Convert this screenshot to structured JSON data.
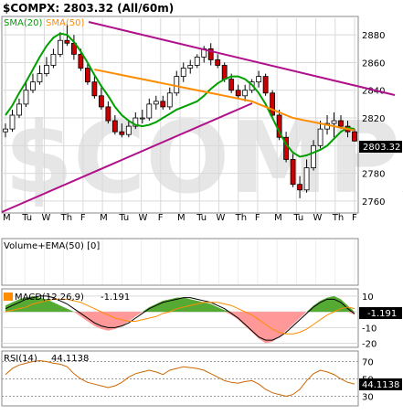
{
  "header": {
    "symbol_line": "$COMPX: 2803.32 (All/60m)",
    "sma20_label": "SMA(20)",
    "sma50_label": "SMA(50)",
    "watermark": "$COMPX"
  },
  "colors": {
    "background": "#ffffff",
    "grid": "#d9d9d9",
    "price_bar": "#000000",
    "up_candle": "#ffffff",
    "down_candle": "#cc0000",
    "sma20": "#00a000",
    "sma50": "#ff8c00",
    "trendline": "#b0108a",
    "macd_line": "#000000",
    "macd_signal": "#ff8c00",
    "macd_hist_pos": "#55aa33",
    "macd_hist_neg": "#ff9999",
    "rsi_line": "#cc6600",
    "last_value_box": "#000000",
    "last_value_text": "#ffffff"
  },
  "chart_data": [
    {
      "type": "candlestick",
      "title": "$COMPX: 2803.32 (All/60m)",
      "panel": "price",
      "ylim": [
        2752,
        2892
      ],
      "y_ticks": [
        2760,
        2780,
        2800,
        2820,
        2840,
        2860,
        2880
      ],
      "x_tick_labels": [
        "M",
        "Tu",
        "W",
        "Th",
        "F",
        "M",
        "Tu",
        "W",
        "F",
        "M",
        "Tu",
        "W",
        "Th",
        "F",
        "M",
        "Tu",
        "W",
        "Th",
        "F"
      ],
      "last_value": 2803.32,
      "last_value_label": "2803.32",
      "series": [
        {
          "name": "SMA(20)",
          "values": [
            2822,
            2829,
            2838,
            2846,
            2855,
            2864,
            2872,
            2878,
            2881,
            2880,
            2875,
            2868,
            2860,
            2851,
            2843,
            2836,
            2828,
            2822,
            2818,
            2815,
            2814,
            2815,
            2817,
            2820,
            2823,
            2826,
            2828,
            2830,
            2832,
            2836,
            2841,
            2845,
            2848,
            2850,
            2850,
            2848,
            2844,
            2838,
            2830,
            2820,
            2810,
            2801,
            2795,
            2792,
            2793,
            2795,
            2797,
            2800,
            2805,
            2810,
            2813,
            2812
          ]
        },
        {
          "name": "SMA(50)",
          "values": [
            null,
            null,
            null,
            null,
            null,
            null,
            null,
            null,
            null,
            null,
            null,
            null,
            null,
            2855,
            2854,
            2853,
            2852,
            2851,
            2850,
            2849,
            2848,
            2847,
            2846,
            2845,
            2844,
            2843,
            2842,
            2841,
            2840,
            2839,
            2838,
            2837,
            2836,
            2835,
            2834,
            2833,
            2832,
            2830,
            2828,
            2826,
            2824,
            2822,
            2820,
            2819,
            2818,
            2817,
            2816,
            2815,
            2814,
            2813,
            2812,
            2811
          ]
        }
      ],
      "candles": {
        "open": [
          2810,
          2812,
          2822,
          2830,
          2840,
          2846,
          2852,
          2858,
          2866,
          2876,
          2874,
          2866,
          2856,
          2846,
          2836,
          2828,
          2818,
          2810,
          2808,
          2814,
          2820,
          2820,
          2830,
          2832,
          2828,
          2838,
          2850,
          2856,
          2858,
          2864,
          2870,
          2862,
          2858,
          2848,
          2840,
          2836,
          2840,
          2846,
          2850,
          2838,
          2822,
          2806,
          2790,
          2772,
          2768,
          2784,
          2800,
          2812,
          2816,
          2818,
          2814,
          2810
        ],
        "high": [
          2816,
          2826,
          2834,
          2846,
          2852,
          2858,
          2864,
          2870,
          2882,
          2888,
          2880,
          2870,
          2860,
          2850,
          2842,
          2832,
          2822,
          2816,
          2818,
          2824,
          2826,
          2834,
          2836,
          2836,
          2842,
          2854,
          2860,
          2862,
          2866,
          2872,
          2874,
          2866,
          2860,
          2852,
          2844,
          2844,
          2848,
          2854,
          2852,
          2840,
          2826,
          2810,
          2794,
          2778,
          2790,
          2804,
          2818,
          2822,
          2824,
          2822,
          2818,
          2812
        ],
        "low": [
          2806,
          2810,
          2820,
          2828,
          2838,
          2844,
          2850,
          2856,
          2864,
          2872,
          2862,
          2854,
          2844,
          2834,
          2826,
          2816,
          2808,
          2806,
          2806,
          2812,
          2816,
          2818,
          2826,
          2826,
          2826,
          2836,
          2846,
          2852,
          2856,
          2860,
          2858,
          2856,
          2846,
          2838,
          2834,
          2832,
          2838,
          2842,
          2836,
          2820,
          2804,
          2788,
          2770,
          2762,
          2766,
          2782,
          2798,
          2808,
          2806,
          2812,
          2806,
          2803
        ],
        "close": [
          2812,
          2822,
          2830,
          2840,
          2846,
          2852,
          2858,
          2866,
          2876,
          2874,
          2866,
          2856,
          2846,
          2836,
          2828,
          2818,
          2810,
          2808,
          2814,
          2820,
          2820,
          2830,
          2832,
          2828,
          2838,
          2850,
          2856,
          2858,
          2864,
          2870,
          2862,
          2858,
          2848,
          2840,
          2836,
          2840,
          2846,
          2850,
          2838,
          2822,
          2806,
          2790,
          2772,
          2768,
          2784,
          2800,
          2812,
          2816,
          2818,
          2814,
          2810,
          2803.32
        ]
      }
    },
    {
      "type": "bar",
      "panel": "volume",
      "title": "Volume+EMA(50) [0]",
      "values": []
    },
    {
      "type": "area",
      "panel": "macd",
      "title": "MACD(12,26,9)",
      "last_value": -1.191,
      "last_value_label": "-1.191",
      "header_value": "-1.191",
      "ylim": [
        -22,
        14
      ],
      "y_ticks": [
        10,
        0,
        -10,
        -20
      ],
      "histogram": [
        4,
        6,
        8,
        9,
        10,
        9,
        8,
        6,
        4,
        2,
        0,
        -3,
        -6,
        -9,
        -11,
        -12,
        -11,
        -9,
        -6,
        -3,
        0,
        3,
        5,
        7,
        8,
        9,
        9,
        8,
        7,
        6,
        5,
        3,
        1,
        -2,
        -5,
        -9,
        -13,
        -17,
        -20,
        -19,
        -16,
        -12,
        -8,
        -4,
        0,
        4,
        7,
        9,
        10,
        8,
        4,
        -2
      ],
      "macd": [
        2,
        4,
        6,
        8,
        9,
        10,
        10,
        9,
        7,
        5,
        2,
        -1,
        -4,
        -7,
        -9,
        -10,
        -10,
        -9,
        -7,
        -4,
        -1,
        2,
        4,
        6,
        7,
        8,
        9,
        9,
        8,
        7,
        6,
        4,
        2,
        -1,
        -4,
        -8,
        -12,
        -16,
        -18,
        -18,
        -16,
        -13,
        -9,
        -5,
        -1,
        3,
        6,
        8,
        8,
        6,
        2,
        -1.191
      ],
      "signal": [
        0,
        1,
        2,
        3,
        5,
        6,
        7,
        8,
        8,
        8,
        7,
        6,
        4,
        2,
        0,
        -2,
        -4,
        -5,
        -6,
        -6,
        -5,
        -4,
        -3,
        -1,
        0,
        2,
        3,
        4,
        5,
        6,
        6,
        6,
        5,
        4,
        2,
        0,
        -2,
        -5,
        -8,
        -11,
        -13,
        -14,
        -14,
        -13,
        -11,
        -8,
        -5,
        -2,
        0,
        2,
        3,
        2
      ]
    },
    {
      "type": "line",
      "panel": "rsi",
      "title": "RSI(14)",
      "header_value": "44.1138",
      "last_value": 44.1138,
      "last_value_label": "44.1138",
      "ylim": [
        20,
        80
      ],
      "y_ticks": [
        70,
        50,
        30
      ],
      "values": [
        55,
        62,
        66,
        68,
        70,
        71,
        70,
        68,
        67,
        64,
        56,
        50,
        46,
        44,
        42,
        40,
        42,
        46,
        52,
        56,
        58,
        60,
        58,
        55,
        60,
        62,
        64,
        63,
        62,
        60,
        56,
        52,
        48,
        46,
        45,
        47,
        48,
        44,
        38,
        34,
        32,
        30,
        32,
        38,
        48,
        56,
        60,
        58,
        55,
        50,
        46,
        44.1138
      ]
    }
  ]
}
